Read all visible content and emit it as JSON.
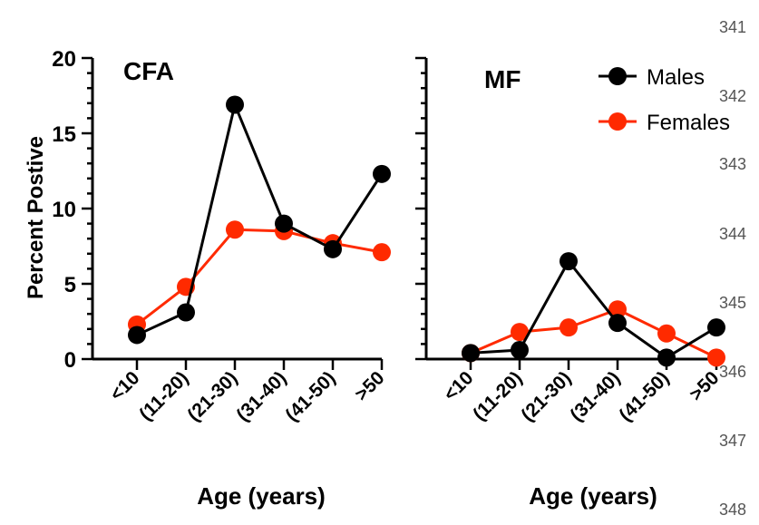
{
  "line_numbers": [
    "341",
    "342",
    "343",
    "344",
    "345",
    "346",
    "347",
    "348"
  ],
  "legend": [
    {
      "name": "Males",
      "color": "#000000"
    },
    {
      "name": "Females",
      "color": "#ff2a00"
    }
  ],
  "chart_data": [
    {
      "type": "line",
      "title": "CFA",
      "xlabel": "Age (years)",
      "ylabel": "Percent Postive",
      "categories": [
        "<10",
        "(11-20)",
        "(21-30)",
        "(31-40)",
        "(41-50)",
        ">50"
      ],
      "ylim": [
        0,
        20
      ],
      "yticks": [
        "0",
        "5",
        "10",
        "15",
        "20"
      ],
      "grid": false,
      "series": [
        {
          "name": "Males",
          "color": "#000000",
          "values": [
            1.6,
            3.1,
            16.9,
            9.0,
            7.3,
            12.3
          ]
        },
        {
          "name": "Females",
          "color": "#ff2a00",
          "values": [
            2.3,
            4.8,
            8.6,
            8.5,
            7.7,
            7.1
          ]
        }
      ]
    },
    {
      "type": "line",
      "title": "MF",
      "xlabel": "Age (years)",
      "ylabel": "",
      "categories": [
        "<10",
        "(11-20)",
        "(21-30)",
        "(31-40)",
        "(41-50)",
        ">50"
      ],
      "ylim": [
        0,
        20
      ],
      "grid": false,
      "legend_position": "top-right",
      "series": [
        {
          "name": "Males",
          "color": "#000000",
          "values": [
            0.4,
            0.6,
            6.5,
            2.4,
            0.1,
            2.1
          ]
        },
        {
          "name": "Females",
          "color": "#ff2a00",
          "values": [
            0.4,
            1.8,
            2.1,
            3.3,
            1.7,
            0.1
          ]
        }
      ]
    }
  ]
}
